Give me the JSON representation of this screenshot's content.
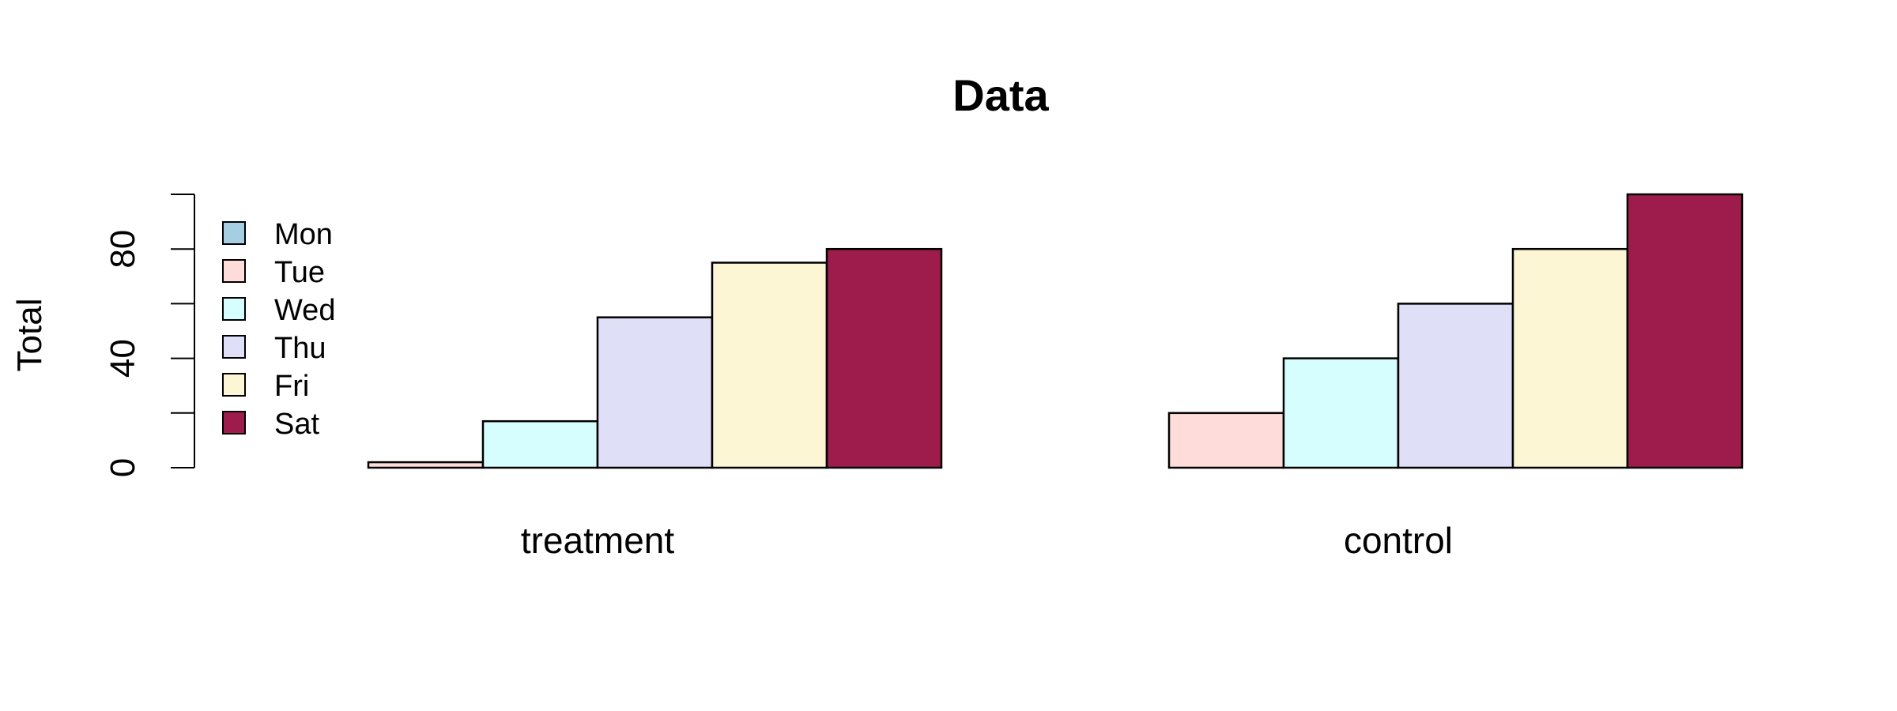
{
  "chart_data": {
    "type": "bar",
    "layout": "grouped",
    "title": "Data",
    "xlabel": "",
    "ylabel": "Total",
    "categories": [
      "treatment",
      "control"
    ],
    "series": [
      {
        "name": "Mon",
        "color": "#a6cee3",
        "values": [
          0,
          0
        ]
      },
      {
        "name": "Tue",
        "color": "#fddcd9",
        "values": [
          2,
          20
        ]
      },
      {
        "name": "Wed",
        "color": "#d6fefe",
        "values": [
          17,
          40
        ]
      },
      {
        "name": "Thu",
        "color": "#e0dff8",
        "values": [
          55,
          60
        ]
      },
      {
        "name": "Fri",
        "color": "#fdf6d4",
        "values": [
          75,
          80
        ]
      },
      {
        "name": "Sat",
        "color": "#9e1c4c",
        "values": [
          80,
          100
        ]
      }
    ],
    "ylim": [
      0,
      100
    ],
    "yticks": [
      0,
      20,
      40,
      60,
      80,
      100
    ],
    "ytick_labels": [
      "0",
      "",
      "40",
      "",
      "80",
      ""
    ],
    "legend_position": "top-left",
    "grid": false
  }
}
